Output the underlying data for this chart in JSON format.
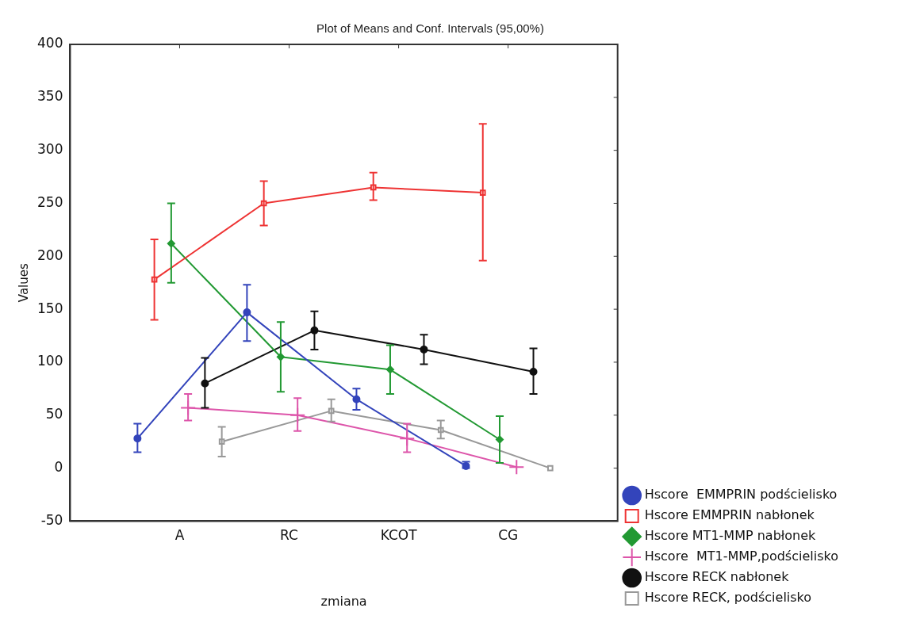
{
  "chart_data": {
    "type": "line",
    "title": "Plot of Means and Conf. Intervals (95,00%)",
    "xlabel": "zmiana",
    "ylabel": "Values",
    "categories": [
      "A",
      "RC",
      "KCOT",
      "CG"
    ],
    "ylim": [
      -50,
      400
    ],
    "yticks": [
      -50,
      0,
      50,
      100,
      150,
      200,
      250,
      300,
      350,
      400
    ],
    "grid": false,
    "legend": "bottom right",
    "line_style": "solid",
    "series": [
      {
        "name": "Hscore  EMMPRIN podścielisko",
        "color": "#3344bb",
        "marker": "circle",
        "values": [
          28,
          147,
          65,
          2
        ],
        "errors": [
          [
            15,
            42
          ],
          [
            120,
            173
          ],
          [
            55,
            75
          ],
          [
            0,
            6
          ]
        ]
      },
      {
        "name": "Hscore EMMPRIN nabłonek",
        "color": "#ee3333",
        "marker": "square",
        "values": [
          178,
          250,
          265,
          260
        ],
        "errors": [
          [
            140,
            216
          ],
          [
            229,
            271
          ],
          [
            253,
            279
          ],
          [
            196,
            325
          ]
        ]
      },
      {
        "name": "Hscore MT1-MMP nabłonek",
        "color": "#229933",
        "marker": "diamond",
        "values": [
          212,
          105,
          93,
          27
        ],
        "errors": [
          [
            175,
            250
          ],
          [
            72,
            138
          ],
          [
            70,
            116
          ],
          [
            5,
            49
          ]
        ]
      },
      {
        "name": "Hscore  MT1-MMP,podścielisko",
        "color": "#dd55aa",
        "marker": "cross",
        "values": [
          57,
          50,
          28,
          1
        ],
        "errors": [
          [
            45,
            70
          ],
          [
            35,
            66
          ],
          [
            15,
            42
          ],
          null
        ]
      },
      {
        "name": "Hscore RECK nabłonek",
        "color": "#111111",
        "marker": "circle",
        "values": [
          80,
          130,
          112,
          91
        ],
        "errors": [
          [
            57,
            104
          ],
          [
            112,
            148
          ],
          [
            98,
            126
          ],
          [
            70,
            113
          ]
        ]
      },
      {
        "name": "Hscore RECK, podścielisko",
        "color": "#999999",
        "marker": "square",
        "values": [
          25,
          54,
          36,
          0
        ],
        "errors": [
          [
            11,
            39
          ],
          [
            44,
            65
          ],
          [
            28,
            45
          ],
          null
        ]
      }
    ]
  }
}
